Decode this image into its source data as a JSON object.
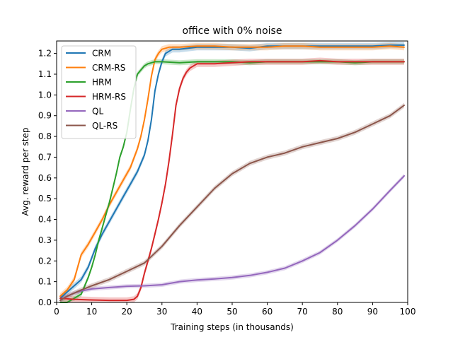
{
  "chart_data": {
    "type": "line",
    "title": "office with 0% noise",
    "xlabel": "Training steps (in thousands)",
    "ylabel": "Avg. reward per step",
    "xlim": [
      0,
      100
    ],
    "ylim": [
      0,
      1.26
    ],
    "xticks": [
      0,
      10,
      20,
      30,
      40,
      50,
      60,
      70,
      80,
      90,
      100
    ],
    "xtick_labels": [
      "0",
      "10",
      "20",
      "30",
      "40",
      "50",
      "60",
      "70",
      "80",
      "90",
      "100"
    ],
    "yticks": [
      0.0,
      0.1,
      0.2,
      0.3,
      0.4,
      0.5,
      0.6,
      0.7,
      0.8,
      0.9,
      1.0,
      1.1,
      1.2
    ],
    "ytick_labels": [
      "0.0",
      "0.1",
      "0.2",
      "0.3",
      "0.4",
      "0.5",
      "0.6",
      "0.7",
      "0.8",
      "0.9",
      "1.0",
      "1.1",
      "1.2"
    ],
    "grid": false,
    "legend_position": "top-left",
    "series": [
      {
        "name": "CRM",
        "color": "#1f77b4",
        "band": 0.015,
        "x": [
          1,
          3,
          5,
          7,
          9,
          11,
          13,
          15,
          17,
          19,
          21,
          23,
          25,
          26,
          27,
          28,
          29,
          30,
          31,
          32,
          33,
          35,
          40,
          45,
          50,
          55,
          60,
          65,
          70,
          75,
          80,
          85,
          90,
          95,
          99
        ],
        "y": [
          0.02,
          0.05,
          0.08,
          0.11,
          0.17,
          0.26,
          0.33,
          0.39,
          0.45,
          0.51,
          0.57,
          0.63,
          0.71,
          0.78,
          0.88,
          1.02,
          1.1,
          1.16,
          1.2,
          1.21,
          1.22,
          1.22,
          1.23,
          1.23,
          1.23,
          1.225,
          1.235,
          1.235,
          1.235,
          1.235,
          1.235,
          1.235,
          1.235,
          1.24,
          1.24
        ]
      },
      {
        "name": "CRM-RS",
        "color": "#ff7f0e",
        "band": 0.015,
        "x": [
          1,
          3,
          5,
          7,
          9,
          11,
          13,
          15,
          17,
          19,
          21,
          23,
          24,
          25,
          26,
          27,
          28,
          29,
          30,
          31,
          32,
          35,
          40,
          45,
          50,
          55,
          60,
          65,
          70,
          75,
          80,
          85,
          90,
          95,
          99
        ],
        "y": [
          0.03,
          0.06,
          0.11,
          0.23,
          0.28,
          0.34,
          0.4,
          0.47,
          0.53,
          0.59,
          0.65,
          0.74,
          0.8,
          0.88,
          0.98,
          1.09,
          1.17,
          1.2,
          1.22,
          1.225,
          1.23,
          1.23,
          1.235,
          1.235,
          1.23,
          1.23,
          1.23,
          1.235,
          1.235,
          1.23,
          1.23,
          1.23,
          1.23,
          1.235,
          1.23
        ]
      },
      {
        "name": "HRM",
        "color": "#2ca02c",
        "band": 0.012,
        "x": [
          1,
          3,
          5,
          7,
          8,
          9,
          10,
          11,
          12,
          13,
          14,
          15,
          16,
          17,
          18,
          19,
          20,
          21,
          22,
          23,
          24,
          25,
          26,
          27,
          28,
          30,
          35,
          40,
          45,
          50,
          55,
          60,
          65,
          70,
          75,
          80,
          85,
          90,
          95,
          99
        ],
        "y": [
          0.0,
          0.0,
          0.02,
          0.04,
          0.08,
          0.12,
          0.17,
          0.23,
          0.3,
          0.36,
          0.42,
          0.48,
          0.55,
          0.62,
          0.7,
          0.75,
          0.82,
          0.93,
          1.03,
          1.1,
          1.12,
          1.14,
          1.15,
          1.155,
          1.16,
          1.16,
          1.155,
          1.16,
          1.16,
          1.16,
          1.155,
          1.16,
          1.16,
          1.16,
          1.16,
          1.16,
          1.155,
          1.16,
          1.16,
          1.16
        ]
      },
      {
        "name": "HRM-RS",
        "color": "#d62728",
        "band": 0.015,
        "x": [
          1,
          5,
          10,
          15,
          20,
          22,
          23,
          24,
          25,
          26,
          27,
          28,
          29,
          30,
          31,
          32,
          33,
          34,
          35,
          36,
          37,
          38,
          40,
          45,
          50,
          55,
          60,
          65,
          70,
          75,
          80,
          85,
          90,
          95,
          99
        ],
        "y": [
          0.02,
          0.015,
          0.012,
          0.01,
          0.01,
          0.015,
          0.03,
          0.07,
          0.14,
          0.2,
          0.26,
          0.33,
          0.4,
          0.48,
          0.57,
          0.68,
          0.81,
          0.95,
          1.03,
          1.08,
          1.11,
          1.13,
          1.15,
          1.15,
          1.155,
          1.16,
          1.16,
          1.16,
          1.16,
          1.165,
          1.16,
          1.16,
          1.16,
          1.16,
          1.16
        ]
      },
      {
        "name": "QL",
        "color": "#9467bd",
        "band": 0.01,
        "x": [
          1,
          3,
          5,
          7,
          10,
          15,
          20,
          25,
          30,
          35,
          40,
          45,
          50,
          55,
          60,
          65,
          70,
          75,
          80,
          85,
          90,
          95,
          99
        ],
        "y": [
          0.01,
          0.03,
          0.045,
          0.055,
          0.065,
          0.072,
          0.078,
          0.08,
          0.085,
          0.1,
          0.108,
          0.113,
          0.12,
          0.13,
          0.145,
          0.165,
          0.2,
          0.24,
          0.3,
          0.37,
          0.45,
          0.54,
          0.61
        ]
      },
      {
        "name": "QL-RS",
        "color": "#8c564b",
        "band": 0.012,
        "x": [
          1,
          3,
          5,
          7,
          10,
          15,
          20,
          25,
          30,
          35,
          40,
          45,
          50,
          55,
          60,
          65,
          70,
          75,
          80,
          85,
          90,
          95,
          99
        ],
        "y": [
          0.01,
          0.03,
          0.045,
          0.06,
          0.08,
          0.11,
          0.15,
          0.19,
          0.27,
          0.37,
          0.46,
          0.55,
          0.62,
          0.67,
          0.7,
          0.72,
          0.75,
          0.77,
          0.79,
          0.82,
          0.86,
          0.9,
          0.95
        ]
      }
    ]
  }
}
